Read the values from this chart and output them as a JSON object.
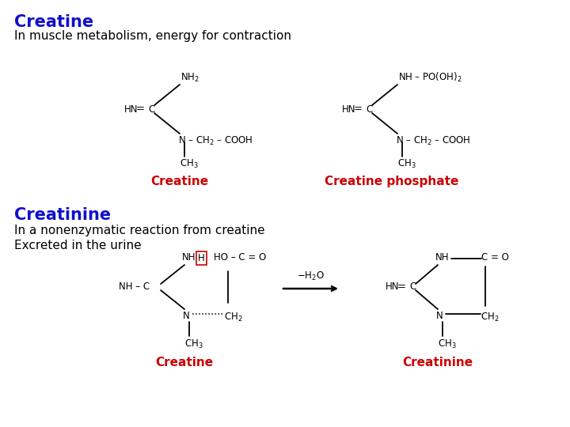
{
  "title1": "Creatine",
  "title1_color": "#1010CC",
  "subtitle1": "In muscle metabolism, energy for contraction",
  "title2": "Creatinine",
  "title2_color": "#1010CC",
  "subtitle2a": "In a nonenzymatic reaction from creatine",
  "subtitle2b": "Excreted in the urine",
  "label_creatine_top": "Creatine",
  "label_creatine_phosphate": "Creatine phosphate",
  "label_creatine_bottom": "Creatine",
  "label_creatinine": "Creatinine",
  "red_label_color": "#CC0000",
  "bg_color": "#FFFFFF",
  "black": "#000000"
}
